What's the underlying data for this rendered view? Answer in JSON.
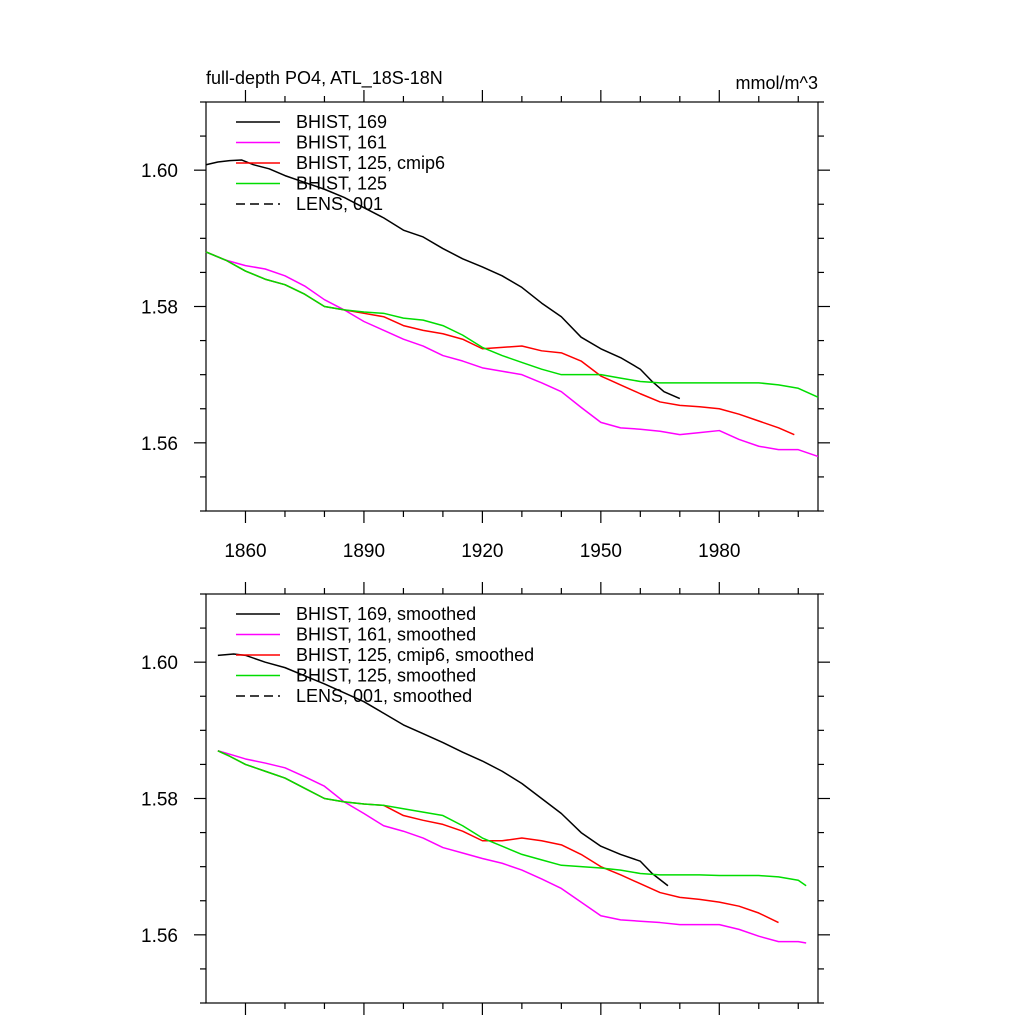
{
  "chart_data": [
    {
      "type": "line",
      "title": "full-depth PO4, ATL_18S-18N",
      "units": "mmol/m^3",
      "xlabel": "",
      "ylabel": "",
      "xlim": [
        1850,
        2005
      ],
      "ylim": [
        1.55,
        1.61
      ],
      "xticks": [
        1860,
        1890,
        1920,
        1950,
        1980
      ],
      "xtick_labels": [
        "1860",
        "1890",
        "1920",
        "1950",
        "1980"
      ],
      "yticks": [
        1.56,
        1.58,
        1.6
      ],
      "ytick_labels": [
        "1.56",
        "1.58",
        "1.60"
      ],
      "legend_position": "top-left",
      "grid": false,
      "series": [
        {
          "name": "BHIST, 169",
          "color": "#000000",
          "dash": "solid",
          "points": [
            [
              1850,
              1.6008
            ],
            [
              1853,
              1.6012
            ],
            [
              1856,
              1.6014
            ],
            [
              1859,
              1.6015
            ],
            [
              1862,
              1.6008
            ],
            [
              1866,
              1.6002
            ],
            [
              1870,
              1.5992
            ],
            [
              1875,
              1.5982
            ],
            [
              1880,
              1.5972
            ],
            [
              1885,
              1.596
            ],
            [
              1890,
              1.5945
            ],
            [
              1895,
              1.593
            ],
            [
              1900,
              1.5912
            ],
            [
              1905,
              1.5902
            ],
            [
              1910,
              1.5885
            ],
            [
              1915,
              1.587
            ],
            [
              1920,
              1.5858
            ],
            [
              1925,
              1.5845
            ],
            [
              1930,
              1.5828
            ],
            [
              1935,
              1.5805
            ],
            [
              1940,
              1.5785
            ],
            [
              1945,
              1.5755
            ],
            [
              1950,
              1.5738
            ],
            [
              1955,
              1.5725
            ],
            [
              1960,
              1.5708
            ],
            [
              1963,
              1.569
            ],
            [
              1966,
              1.5675
            ],
            [
              1970,
              1.5665
            ]
          ]
        },
        {
          "name": "BHIST, 161",
          "color": "#ff00ff",
          "dash": "solid",
          "points": [
            [
              1850,
              1.588
            ],
            [
              1855,
              1.5868
            ],
            [
              1860,
              1.586
            ],
            [
              1865,
              1.5855
            ],
            [
              1870,
              1.5845
            ],
            [
              1875,
              1.583
            ],
            [
              1880,
              1.581
            ],
            [
              1885,
              1.5795
            ],
            [
              1890,
              1.5778
            ],
            [
              1895,
              1.5765
            ],
            [
              1900,
              1.5752
            ],
            [
              1905,
              1.5742
            ],
            [
              1910,
              1.5728
            ],
            [
              1915,
              1.572
            ],
            [
              1920,
              1.571
            ],
            [
              1925,
              1.5705
            ],
            [
              1930,
              1.57
            ],
            [
              1935,
              1.5688
            ],
            [
              1940,
              1.5675
            ],
            [
              1945,
              1.5652
            ],
            [
              1950,
              1.563
            ],
            [
              1955,
              1.5622
            ],
            [
              1960,
              1.562
            ],
            [
              1965,
              1.5617
            ],
            [
              1970,
              1.5612
            ],
            [
              1975,
              1.5615
            ],
            [
              1980,
              1.5618
            ],
            [
              1985,
              1.5605
            ],
            [
              1990,
              1.5595
            ],
            [
              1995,
              1.559
            ],
            [
              2000,
              1.559
            ],
            [
              2005,
              1.558
            ]
          ]
        },
        {
          "name": "BHIST, 125, cmip6",
          "color": "#ff0000",
          "dash": "solid",
          "points": [
            [
              1850,
              1.588
            ],
            [
              1855,
              1.5868
            ],
            [
              1860,
              1.5852
            ],
            [
              1865,
              1.584
            ],
            [
              1870,
              1.5832
            ],
            [
              1875,
              1.5818
            ],
            [
              1880,
              1.58
            ],
            [
              1885,
              1.5795
            ],
            [
              1890,
              1.579
            ],
            [
              1895,
              1.5785
            ],
            [
              1900,
              1.5772
            ],
            [
              1905,
              1.5765
            ],
            [
              1910,
              1.576
            ],
            [
              1915,
              1.5752
            ],
            [
              1920,
              1.5738
            ],
            [
              1925,
              1.574
            ],
            [
              1930,
              1.5742
            ],
            [
              1935,
              1.5735
            ],
            [
              1940,
              1.5732
            ],
            [
              1945,
              1.572
            ],
            [
              1950,
              1.5698
            ],
            [
              1955,
              1.5685
            ],
            [
              1960,
              1.5672
            ],
            [
              1965,
              1.566
            ],
            [
              1970,
              1.5655
            ],
            [
              1975,
              1.5653
            ],
            [
              1980,
              1.565
            ],
            [
              1985,
              1.5642
            ],
            [
              1990,
              1.5632
            ],
            [
              1995,
              1.5622
            ],
            [
              1999,
              1.5612
            ]
          ]
        },
        {
          "name": "BHIST, 125",
          "color": "#00dd00",
          "dash": "solid",
          "points": [
            [
              1850,
              1.588
            ],
            [
              1855,
              1.5868
            ],
            [
              1860,
              1.5852
            ],
            [
              1865,
              1.584
            ],
            [
              1870,
              1.5832
            ],
            [
              1875,
              1.5818
            ],
            [
              1880,
              1.58
            ],
            [
              1885,
              1.5795
            ],
            [
              1890,
              1.5792
            ],
            [
              1895,
              1.579
            ],
            [
              1900,
              1.5783
            ],
            [
              1905,
              1.578
            ],
            [
              1910,
              1.5772
            ],
            [
              1915,
              1.5758
            ],
            [
              1920,
              1.574
            ],
            [
              1925,
              1.5728
            ],
            [
              1930,
              1.5718
            ],
            [
              1935,
              1.5708
            ],
            [
              1940,
              1.57
            ],
            [
              1945,
              1.57
            ],
            [
              1950,
              1.57
            ],
            [
              1955,
              1.5695
            ],
            [
              1960,
              1.569
            ],
            [
              1965,
              1.5688
            ],
            [
              1970,
              1.5688
            ],
            [
              1975,
              1.5688
            ],
            [
              1980,
              1.5688
            ],
            [
              1985,
              1.5688
            ],
            [
              1990,
              1.5688
            ],
            [
              1995,
              1.5685
            ],
            [
              2000,
              1.568
            ],
            [
              2005,
              1.5667
            ]
          ]
        },
        {
          "name": "LENS, 001",
          "color": "#000000",
          "dash": "dashed",
          "points": []
        }
      ]
    },
    {
      "type": "line",
      "title": "",
      "xlabel": "",
      "ylabel": "",
      "xlim": [
        1850,
        2005
      ],
      "ylim": [
        1.55,
        1.61
      ],
      "xticks": [
        1860,
        1890,
        1920,
        1950,
        1980
      ],
      "xtick_labels": [],
      "yticks": [
        1.56,
        1.58,
        1.6
      ],
      "ytick_labels": [
        "1.56",
        "1.58",
        "1.60"
      ],
      "legend_position": "top-left",
      "grid": false,
      "series": [
        {
          "name": "BHIST, 169, smoothed",
          "color": "#000000",
          "dash": "solid",
          "points": [
            [
              1853,
              1.601
            ],
            [
              1857,
              1.6012
            ],
            [
              1860,
              1.601
            ],
            [
              1865,
              1.6
            ],
            [
              1870,
              1.5992
            ],
            [
              1875,
              1.598
            ],
            [
              1880,
              1.5968
            ],
            [
              1885,
              1.5955
            ],
            [
              1890,
              1.5942
            ],
            [
              1895,
              1.5925
            ],
            [
              1900,
              1.5908
            ],
            [
              1905,
              1.5895
            ],
            [
              1910,
              1.5882
            ],
            [
              1915,
              1.5868
            ],
            [
              1920,
              1.5855
            ],
            [
              1925,
              1.584
            ],
            [
              1930,
              1.5822
            ],
            [
              1935,
              1.58
            ],
            [
              1940,
              1.5778
            ],
            [
              1945,
              1.575
            ],
            [
              1950,
              1.573
            ],
            [
              1955,
              1.5718
            ],
            [
              1960,
              1.5708
            ],
            [
              1963,
              1.569
            ],
            [
              1967,
              1.5672
            ]
          ]
        },
        {
          "name": "BHIST, 161, smoothed",
          "color": "#ff00ff",
          "dash": "solid",
          "points": [
            [
              1853,
              1.587
            ],
            [
              1856,
              1.5865
            ],
            [
              1860,
              1.5858
            ],
            [
              1865,
              1.5852
            ],
            [
              1870,
              1.5845
            ],
            [
              1875,
              1.5832
            ],
            [
              1880,
              1.5818
            ],
            [
              1885,
              1.5795
            ],
            [
              1890,
              1.5778
            ],
            [
              1895,
              1.576
            ],
            [
              1900,
              1.5752
            ],
            [
              1905,
              1.5742
            ],
            [
              1910,
              1.5728
            ],
            [
              1915,
              1.572
            ],
            [
              1920,
              1.5712
            ],
            [
              1925,
              1.5705
            ],
            [
              1930,
              1.5695
            ],
            [
              1935,
              1.5682
            ],
            [
              1940,
              1.5668
            ],
            [
              1945,
              1.5648
            ],
            [
              1950,
              1.5628
            ],
            [
              1955,
              1.5622
            ],
            [
              1960,
              1.562
            ],
            [
              1965,
              1.5618
            ],
            [
              1970,
              1.5615
            ],
            [
              1975,
              1.5615
            ],
            [
              1980,
              1.5615
            ],
            [
              1985,
              1.5608
            ],
            [
              1990,
              1.5598
            ],
            [
              1995,
              1.559
            ],
            [
              2000,
              1.559
            ],
            [
              2002,
              1.5588
            ]
          ]
        },
        {
          "name": "BHIST, 125, cmip6, smoothed",
          "color": "#ff0000",
          "dash": "solid",
          "points": [
            [
              1853,
              1.587
            ],
            [
              1856,
              1.5862
            ],
            [
              1860,
              1.585
            ],
            [
              1865,
              1.584
            ],
            [
              1870,
              1.583
            ],
            [
              1875,
              1.5815
            ],
            [
              1880,
              1.58
            ],
            [
              1885,
              1.5795
            ],
            [
              1890,
              1.5792
            ],
            [
              1895,
              1.579
            ],
            [
              1900,
              1.5775
            ],
            [
              1905,
              1.5768
            ],
            [
              1910,
              1.5762
            ],
            [
              1915,
              1.5752
            ],
            [
              1920,
              1.5738
            ],
            [
              1925,
              1.5738
            ],
            [
              1930,
              1.5742
            ],
            [
              1935,
              1.5738
            ],
            [
              1940,
              1.5732
            ],
            [
              1945,
              1.5718
            ],
            [
              1950,
              1.57
            ],
            [
              1955,
              1.5688
            ],
            [
              1960,
              1.5675
            ],
            [
              1965,
              1.5662
            ],
            [
              1970,
              1.5655
            ],
            [
              1975,
              1.5652
            ],
            [
              1980,
              1.5648
            ],
            [
              1985,
              1.5642
            ],
            [
              1990,
              1.5632
            ],
            [
              1995,
              1.5618
            ]
          ]
        },
        {
          "name": "BHIST, 125, smoothed",
          "color": "#00dd00",
          "dash": "solid",
          "points": [
            [
              1853,
              1.587
            ],
            [
              1856,
              1.5862
            ],
            [
              1860,
              1.585
            ],
            [
              1865,
              1.584
            ],
            [
              1870,
              1.583
            ],
            [
              1875,
              1.5815
            ],
            [
              1880,
              1.58
            ],
            [
              1885,
              1.5795
            ],
            [
              1890,
              1.5792
            ],
            [
              1895,
              1.579
            ],
            [
              1900,
              1.5785
            ],
            [
              1905,
              1.578
            ],
            [
              1910,
              1.5775
            ],
            [
              1915,
              1.576
            ],
            [
              1920,
              1.5742
            ],
            [
              1925,
              1.573
            ],
            [
              1930,
              1.5718
            ],
            [
              1935,
              1.571
            ],
            [
              1940,
              1.5702
            ],
            [
              1945,
              1.57
            ],
            [
              1950,
              1.5698
            ],
            [
              1955,
              1.5695
            ],
            [
              1960,
              1.569
            ],
            [
              1965,
              1.5688
            ],
            [
              1970,
              1.5688
            ],
            [
              1975,
              1.5688
            ],
            [
              1980,
              1.5687
            ],
            [
              1985,
              1.5687
            ],
            [
              1990,
              1.5687
            ],
            [
              1995,
              1.5685
            ],
            [
              2000,
              1.568
            ],
            [
              2002,
              1.5672
            ]
          ]
        },
        {
          "name": "LENS, 001, smoothed",
          "color": "#000000",
          "dash": "dashed",
          "points": []
        }
      ]
    }
  ]
}
